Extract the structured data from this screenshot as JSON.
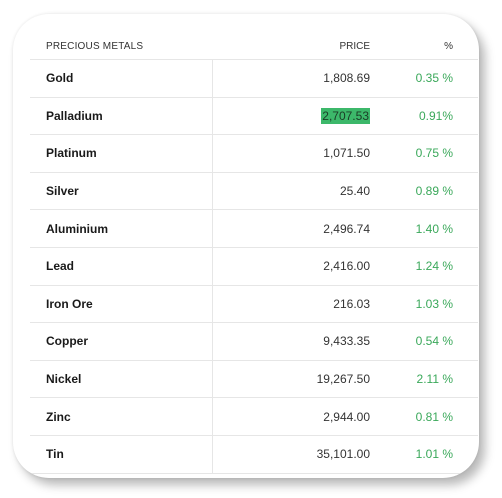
{
  "table": {
    "headers": {
      "name": "PRECIOUS METALS",
      "price": "PRICE",
      "change": "%"
    },
    "rows": [
      {
        "name": "Gold",
        "price": "1,808.69",
        "change": "0.35 %"
      },
      {
        "name": "Palladium",
        "price": "2,707.53",
        "change": "0.91%",
        "highlighted": true
      },
      {
        "name": "Platinum",
        "price": "1,071.50",
        "change": "0.75 %"
      },
      {
        "name": "Silver",
        "price": "25.40",
        "change": "0.89 %"
      },
      {
        "name": "Aluminium",
        "price": "2,496.74",
        "change": "1.40 %"
      },
      {
        "name": "Lead",
        "price": "2,416.00",
        "change": "1.24 %"
      },
      {
        "name": "Iron Ore",
        "price": "216.03",
        "change": "1.03 %"
      },
      {
        "name": "Copper",
        "price": "9,433.35",
        "change": "0.54 %"
      },
      {
        "name": "Nickel",
        "price": "19,267.50",
        "change": "2.11 %"
      },
      {
        "name": "Zinc",
        "price": "2,944.00",
        "change": "0.81 %"
      },
      {
        "name": "Tin",
        "price": "35,101.00",
        "change": "1.01 %"
      }
    ]
  },
  "colors": {
    "positive_change": "#3aa85a",
    "highlight": "#3cb86a"
  }
}
